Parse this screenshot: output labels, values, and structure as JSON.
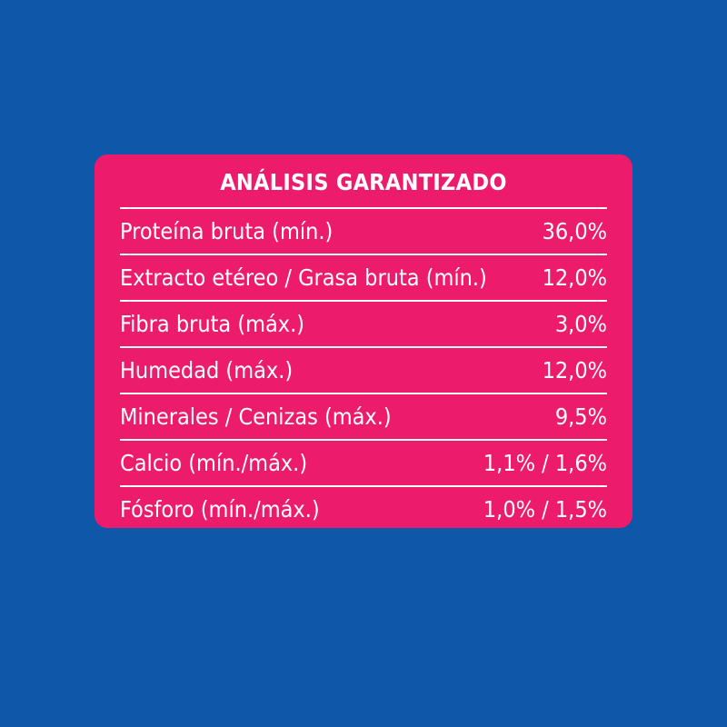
{
  "colors": {
    "background": "#0f57a8",
    "panel": "#ec1b6c",
    "text": "#ffffff"
  },
  "table": {
    "title": "ANÁLISIS GARANTIZADO",
    "rows": [
      {
        "label": "Proteína bruta (mín.)",
        "value": "36,0%"
      },
      {
        "label": "Extracto etéreo / Grasa bruta (mín.)",
        "value": "12,0%"
      },
      {
        "label": "Fibra bruta (máx.)",
        "value": "3,0%"
      },
      {
        "label": "Humedad (máx.)",
        "value": "12,0%"
      },
      {
        "label": "Minerales / Cenizas (máx.)",
        "value": "9,5%"
      },
      {
        "label": "Calcio (mín./máx.)",
        "value": "1,1% / 1,6%"
      },
      {
        "label": "Fósforo (mín./máx.)",
        "value": "1,0% / 1,5%"
      }
    ]
  }
}
